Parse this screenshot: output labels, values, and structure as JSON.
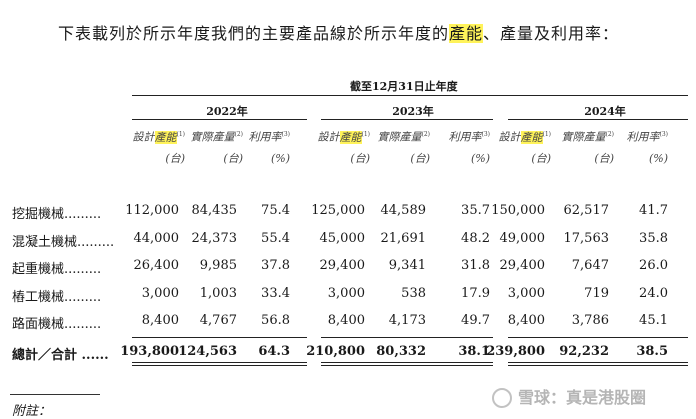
{
  "intro": {
    "before": "下表載列於所示年度我們的主要產品線於所示年度的",
    "highlight": "產能",
    "after": "、產量及利用率："
  },
  "period": "截至12月31日止年度",
  "years": [
    "2022年",
    "2023年",
    "2024年"
  ],
  "col_headers": {
    "design_pre": "設計",
    "design_hl": "產能",
    "design_note": "(1)",
    "actual": "實際產量",
    "actual_note": "(2)",
    "util": "利用率",
    "util_note": "(3)",
    "unit_sets": "(台)",
    "unit_pct": "(%)"
  },
  "rows": [
    {
      "label": "挖掘機械.........",
      "values": [
        "112,000",
        "84,435",
        "75.4",
        "125,000",
        "44,589",
        "35.7",
        "150,000",
        "62,517",
        "41.7"
      ]
    },
    {
      "label": "混凝土機械.........",
      "values": [
        "44,000",
        "24,373",
        "55.4",
        "45,000",
        "21,691",
        "48.2",
        "49,000",
        "17,563",
        "35.8"
      ]
    },
    {
      "label": "起重機械.........",
      "values": [
        "26,400",
        "9,985",
        "37.8",
        "29,400",
        "9,341",
        "31.8",
        "29,400",
        "7,647",
        "26.0"
      ]
    },
    {
      "label": "樁工機械.........",
      "values": [
        "3,000",
        "1,003",
        "33.4",
        "3,000",
        "538",
        "17.9",
        "3,000",
        "719",
        "24.0"
      ]
    },
    {
      "label": "路面機械.........",
      "values": [
        "8,400",
        "4,767",
        "56.8",
        "8,400",
        "4,173",
        "49.7",
        "8,400",
        "3,786",
        "45.1"
      ]
    }
  ],
  "total": {
    "label": "總計／合計 ......",
    "values": [
      "193,800",
      "124,563",
      "64.3",
      "210,800",
      "80,332",
      "38.1",
      "239,800",
      "92,232",
      "38.5"
    ]
  },
  "footnote": "附註：",
  "watermark": "雪球：真是港股圈"
}
